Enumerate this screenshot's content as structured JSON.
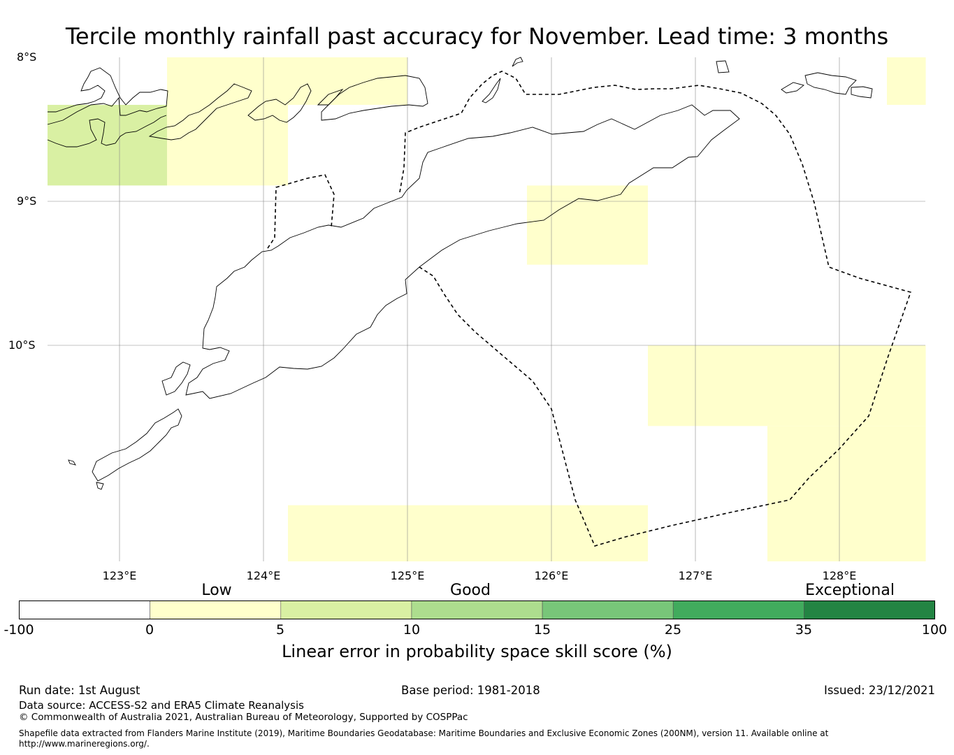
{
  "title": "Tercile monthly rainfall past accuracy for November. Lead time: 3 months",
  "map": {
    "lat_labels": [
      "8°S",
      "9°S",
      "10°S"
    ],
    "lon_labels": [
      "123°E",
      "124°E",
      "125°E",
      "126°E",
      "127°E",
      "128°E"
    ],
    "gridlines": true,
    "skill_cells": [
      {
        "lon": [
          122.5,
          123.33
        ],
        "lat": [
          -8.33,
          -8.89
        ],
        "category": "5-10",
        "color": "#d9f0a3"
      },
      {
        "lon": [
          123.33,
          125.0
        ],
        "lat": [
          -8.0,
          -8.33
        ],
        "category": "0-5",
        "color": "#ffffcc"
      },
      {
        "lon": [
          123.33,
          124.17
        ],
        "lat": [
          -8.33,
          -8.89
        ],
        "category": "0-5",
        "color": "#ffffcc"
      },
      {
        "lon": [
          128.33,
          128.6
        ],
        "lat": [
          -8.0,
          -8.33
        ],
        "category": "0-5",
        "color": "#ffffcc"
      },
      {
        "lon": [
          125.83,
          126.67
        ],
        "lat": [
          -8.89,
          -9.44
        ],
        "category": "0-5",
        "color": "#ffffcc"
      },
      {
        "lon": [
          126.67,
          128.6
        ],
        "lat": [
          -10.0,
          -10.56
        ],
        "category": "0-5",
        "color": "#ffffcc"
      },
      {
        "lon": [
          127.5,
          128.6
        ],
        "lat": [
          -10.56,
          -11.5
        ],
        "category": "0-5",
        "color": "#ffffcc"
      },
      {
        "lon": [
          124.17,
          126.67
        ],
        "lat": [
          -11.11,
          -11.5
        ],
        "category": "0-5",
        "color": "#ffffcc"
      }
    ]
  },
  "colorbar": {
    "categories": [
      "Low",
      "Good",
      "Exceptional"
    ],
    "ticks": [
      "-100",
      "0",
      "5",
      "10",
      "15",
      "25",
      "35",
      "100"
    ],
    "colors": [
      "#ffffff",
      "#ffffcc",
      "#d9f0a3",
      "#addd8e",
      "#78c679",
      "#41ab5d",
      "#238443"
    ],
    "label": "Linear error in probability space skill score (%)"
  },
  "footer": {
    "run_date": "Run date: 1st August",
    "base_period": "Base period: 1981-2018",
    "issued": "Issued: 23/12/2021",
    "data_source": "Data source: ACCESS-S2 and ERA5 Climate Reanalysis",
    "copyright": "© Commonwealth of Australia 2021, Australian Bureau of Meteorology, Supported by COSPPac",
    "shapefile_line1": "Shapefile data extracted from Flanders Marine Institute (2019), Maritime Boundaries Geodatabase: Maritime Boundaries and Exclusive Economic Zones (200NM), version 11. Available online at",
    "shapefile_line2": "http://www.marineregions.org/."
  }
}
